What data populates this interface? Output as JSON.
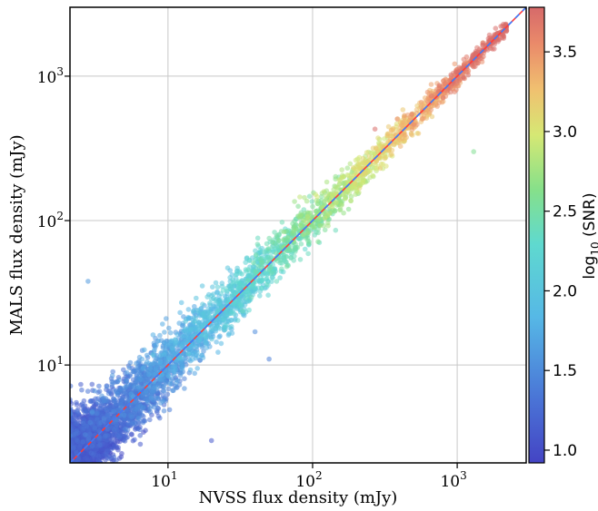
{
  "chart_data": {
    "type": "scatter",
    "xlabel": "NVSS flux density (mJy)",
    "ylabel": "MALS flux density (mJy)",
    "x_scale": "log",
    "y_scale": "log",
    "xlim": [
      2.1,
      3000
    ],
    "ylim": [
      2.1,
      3000
    ],
    "x_ticks": [
      {
        "value": 10,
        "mantissa": "10",
        "exponent": "1"
      },
      {
        "value": 100,
        "mantissa": "10",
        "exponent": "2"
      },
      {
        "value": 1000,
        "mantissa": "10",
        "exponent": "3"
      }
    ],
    "y_ticks": [
      {
        "value": 10,
        "mantissa": "10",
        "exponent": "1"
      },
      {
        "value": 100,
        "mantissa": "10",
        "exponent": "2"
      },
      {
        "value": 1000,
        "mantissa": "10",
        "exponent": "3"
      }
    ],
    "grid": true,
    "reference_line": {
      "description": "one-to-one",
      "slope": 1,
      "colors": [
        "#ff3a3a",
        "#3a7bff"
      ]
    },
    "colorbar": {
      "label_main": "log",
      "label_sub": "10",
      "label_rest": " (SNR)",
      "range": [
        0.92,
        3.78
      ],
      "ticks": [
        "1.0",
        "1.5",
        "2.0",
        "2.5",
        "3.0",
        "3.5"
      ],
      "colormap": "jet"
    },
    "series": [
      {
        "color_by": "log10(SNR)",
        "trend": "y ≈ x with scatter decreasing at higher flux",
        "n_points_approx": 6000,
        "points_sample": [
          [
            2.3,
            2.5,
            1.0
          ],
          [
            2.5,
            3.2,
            1.05
          ],
          [
            2.8,
            2.2,
            1.0
          ],
          [
            3.0,
            4.0,
            1.1
          ],
          [
            3.2,
            2.6,
            1.0
          ],
          [
            3.5,
            3.8,
            1.15
          ],
          [
            4.0,
            5.5,
            1.2
          ],
          [
            4.5,
            3.6,
            1.15
          ],
          [
            5.0,
            6.0,
            1.3
          ],
          [
            5.5,
            4.2,
            1.25
          ],
          [
            6.0,
            7.5,
            1.4
          ],
          [
            6.5,
            5.0,
            1.35
          ],
          [
            7.0,
            8.5,
            1.5
          ],
          [
            8.0,
            6.5,
            1.45
          ],
          [
            9.0,
            11.0,
            1.6
          ],
          [
            10.0,
            9.0,
            1.65
          ],
          [
            12.0,
            14.0,
            1.75
          ],
          [
            14.0,
            12.0,
            1.75
          ],
          [
            17.0,
            19.0,
            1.85
          ],
          [
            20.0,
            17.0,
            1.85
          ],
          [
            25.0,
            28.0,
            1.95
          ],
          [
            30.0,
            27.0,
            2.0
          ],
          [
            40.0,
            42.0,
            2.1
          ],
          [
            50.0,
            48.0,
            2.15
          ],
          [
            60.0,
            65.0,
            2.25
          ],
          [
            80.0,
            75.0,
            2.3
          ],
          [
            100.0,
            105.0,
            2.4
          ],
          [
            130.0,
            120.0,
            2.45
          ],
          [
            170.0,
            180.0,
            2.6
          ],
          [
            220.0,
            210.0,
            2.7
          ],
          [
            300.0,
            310.0,
            2.85
          ],
          [
            400.0,
            380.0,
            3.0
          ],
          [
            550.0,
            560.0,
            3.1
          ],
          [
            800.0,
            780.0,
            3.3
          ],
          [
            1100.0,
            1150.0,
            3.5
          ],
          [
            1600.0,
            1550.0,
            3.7
          ],
          [
            2.8,
            38.0,
            1.6
          ],
          [
            1300.0,
            300.0,
            2.6
          ],
          [
            270.0,
            430.0,
            3.75
          ],
          [
            50.0,
            11.0,
            1.4
          ],
          [
            40.0,
            17.0,
            1.5
          ],
          [
            20.0,
            3.0,
            1.1
          ]
        ]
      }
    ]
  }
}
